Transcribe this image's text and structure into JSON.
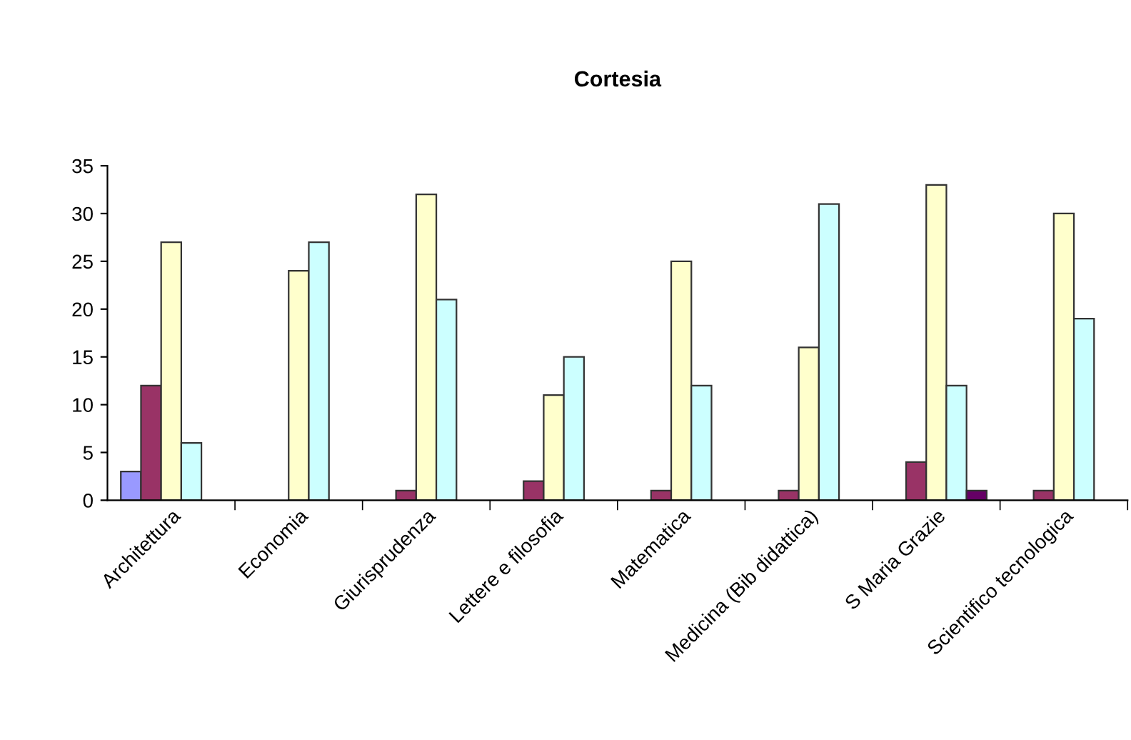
{
  "chart_data": {
    "type": "bar",
    "title": "Cortesia",
    "categories": [
      "Architettura",
      "Economia",
      "Giurisprudenza",
      "Lettere e filosofia",
      "Matematica",
      "Medicina (Bib didattica)",
      "S Maria Grazie",
      "Scientifico tecnologica"
    ],
    "series": [
      {
        "color": "#9999ff",
        "values": [
          3,
          null,
          null,
          null,
          null,
          null,
          null,
          null
        ]
      },
      {
        "color": "#993366",
        "values": [
          12,
          null,
          1,
          2,
          1,
          1,
          4,
          1
        ]
      },
      {
        "color": "#ffffcc",
        "values": [
          27,
          24,
          32,
          11,
          25,
          16,
          33,
          30
        ]
      },
      {
        "color": "#ccffff",
        "values": [
          6,
          27,
          21,
          15,
          12,
          31,
          12,
          19
        ]
      },
      {
        "color": "#660066",
        "values": [
          null,
          null,
          null,
          null,
          null,
          null,
          1,
          null
        ]
      }
    ],
    "ylim": [
      0,
      35
    ],
    "yticks": [
      0,
      5,
      10,
      15,
      20,
      25,
      30,
      35
    ],
    "grid": false,
    "legend": false
  }
}
